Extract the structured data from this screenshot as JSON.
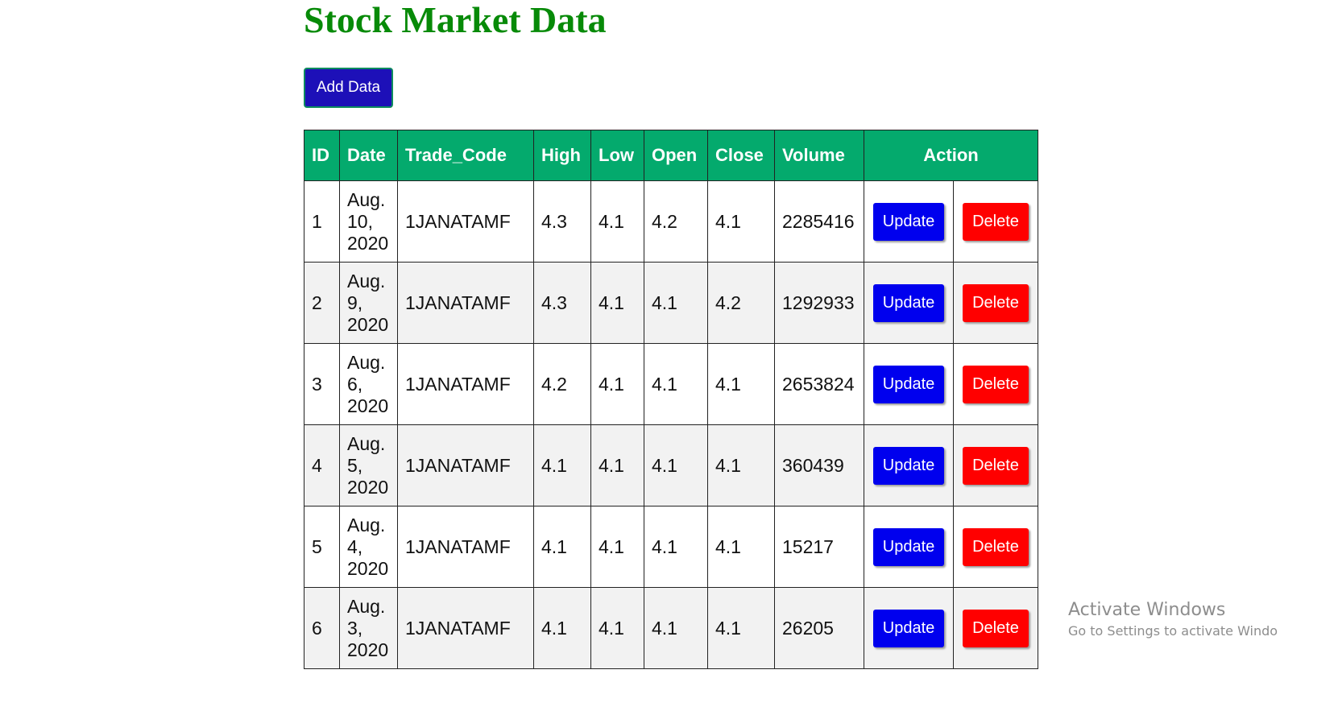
{
  "page": {
    "title": "Stock Market Data",
    "add_button_label": "Add Data"
  },
  "table": {
    "headers": [
      "ID",
      "Date",
      "Trade_Code",
      "High",
      "Low",
      "Open",
      "Close",
      "Volume",
      "Action"
    ],
    "update_label": "Update",
    "delete_label": "Delete",
    "rows": [
      {
        "id": "1",
        "date_line1": "Aug.",
        "date_line2": "10,",
        "date_line3": "2020",
        "trade_code": "1JANATAMF",
        "high": "4.3",
        "low": "4.1",
        "open": "4.2",
        "close": "4.1",
        "volume": "2285416"
      },
      {
        "id": "2",
        "date_line1": "Aug.",
        "date_line2": "9,",
        "date_line3": "2020",
        "trade_code": "1JANATAMF",
        "high": "4.3",
        "low": "4.1",
        "open": "4.1",
        "close": "4.2",
        "volume": "1292933"
      },
      {
        "id": "3",
        "date_line1": "Aug.",
        "date_line2": "6,",
        "date_line3": "2020",
        "trade_code": "1JANATAMF",
        "high": "4.2",
        "low": "4.1",
        "open": "4.1",
        "close": "4.1",
        "volume": "2653824"
      },
      {
        "id": "4",
        "date_line1": "Aug.",
        "date_line2": "5,",
        "date_line3": "2020",
        "trade_code": "1JANATAMF",
        "high": "4.1",
        "low": "4.1",
        "open": "4.1",
        "close": "4.1",
        "volume": "360439"
      },
      {
        "id": "5",
        "date_line1": "Aug.",
        "date_line2": "4,",
        "date_line3": "2020",
        "trade_code": "1JANATAMF",
        "high": "4.1",
        "low": "4.1",
        "open": "4.1",
        "close": "4.1",
        "volume": "15217"
      },
      {
        "id": "6",
        "date_line1": "Aug.",
        "date_line2": "3,",
        "date_line3": "2020",
        "trade_code": "1JANATAMF",
        "high": "4.1",
        "low": "4.1",
        "open": "4.1",
        "close": "4.1",
        "volume": "26205"
      }
    ]
  },
  "watermark": {
    "title": "Activate Windows",
    "subtitle": "Go to Settings to activate Windo"
  },
  "colors": {
    "title_green": "#078a08",
    "header_green": "#04aa6d",
    "add_button": "#1d10b8",
    "update_blue": "#0000ee",
    "delete_red": "#ff0000"
  }
}
